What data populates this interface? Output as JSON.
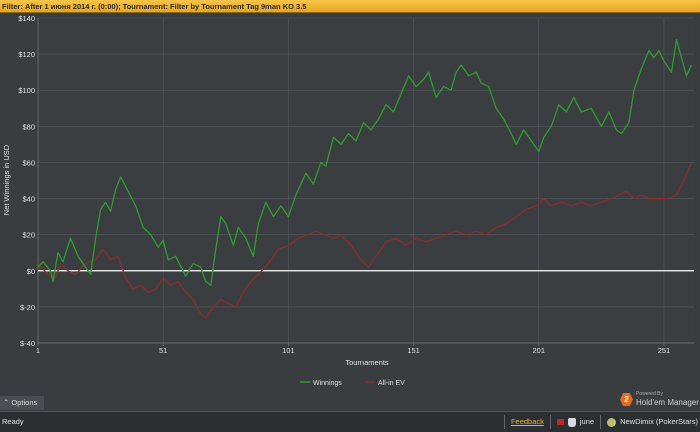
{
  "filter": {
    "prefix": "Filter:",
    "text": "After 1 июня 2014 г. (0:00);  Tournament: Filter by Tournament Tag  9man KO 3.5"
  },
  "options_label": "Options",
  "brand": {
    "powered": "Powered By",
    "name": "Hold'em Manager"
  },
  "status": {
    "ready": "Ready",
    "feedback": "Feedback",
    "tag": "june",
    "user": "NewDimix (PokerStars)"
  },
  "colors": {
    "winnings": "#2e9c2e",
    "allin_ev": "#8b2c2c",
    "zero_line": "#ffffff",
    "grid": "#55585c",
    "plot_bg": "#3b3e41"
  },
  "chart_data": {
    "type": "line",
    "xlabel": "Tournaments",
    "ylabel": "Net Winnings in USD",
    "xlim": [
      1,
      263
    ],
    "ylim": [
      -40,
      140
    ],
    "xticks": [
      1,
      51,
      101,
      151,
      201,
      251
    ],
    "yticks": [
      -40,
      -20,
      0,
      20,
      40,
      60,
      80,
      100,
      120,
      140
    ],
    "ytick_labels": [
      "$-40",
      "$-20",
      "$0",
      "$20",
      "$40",
      "$60",
      "$80",
      "$100",
      "$120",
      "$140"
    ],
    "grid": true,
    "legend_position": "bottom-center",
    "series": [
      {
        "name": "Winnings",
        "color": "#2e9c2e",
        "points": [
          [
            1,
            2
          ],
          [
            3,
            5
          ],
          [
            6,
            0
          ],
          [
            7,
            -6
          ],
          [
            9,
            10
          ],
          [
            11,
            5
          ],
          [
            14,
            18
          ],
          [
            17,
            8
          ],
          [
            20,
            2
          ],
          [
            22,
            -2
          ],
          [
            24,
            18
          ],
          [
            26,
            34
          ],
          [
            28,
            38
          ],
          [
            30,
            33
          ],
          [
            32,
            45
          ],
          [
            34,
            52
          ],
          [
            37,
            44
          ],
          [
            40,
            36
          ],
          [
            43,
            24
          ],
          [
            46,
            20
          ],
          [
            49,
            13
          ],
          [
            51,
            17
          ],
          [
            53,
            6
          ],
          [
            56,
            8
          ],
          [
            60,
            -3
          ],
          [
            63,
            4
          ],
          [
            66,
            2
          ],
          [
            68,
            -6
          ],
          [
            70,
            -8
          ],
          [
            72,
            12
          ],
          [
            74,
            30
          ],
          [
            76,
            26
          ],
          [
            79,
            14
          ],
          [
            81,
            24
          ],
          [
            84,
            18
          ],
          [
            87,
            8
          ],
          [
            89,
            26
          ],
          [
            92,
            38
          ],
          [
            95,
            30
          ],
          [
            98,
            36
          ],
          [
            101,
            30
          ],
          [
            104,
            42
          ],
          [
            108,
            54
          ],
          [
            111,
            48
          ],
          [
            114,
            60
          ],
          [
            116,
            58
          ],
          [
            119,
            74
          ],
          [
            122,
            70
          ],
          [
            125,
            76
          ],
          [
            128,
            72
          ],
          [
            131,
            82
          ],
          [
            134,
            78
          ],
          [
            137,
            84
          ],
          [
            140,
            92
          ],
          [
            143,
            88
          ],
          [
            146,
            98
          ],
          [
            149,
            108
          ],
          [
            152,
            102
          ],
          [
            155,
            106
          ],
          [
            157,
            110
          ],
          [
            160,
            96
          ],
          [
            163,
            102
          ],
          [
            166,
            100
          ],
          [
            168,
            110
          ],
          [
            170,
            114
          ],
          [
            173,
            108
          ],
          [
            176,
            110
          ],
          [
            178,
            104
          ],
          [
            181,
            102
          ],
          [
            184,
            90
          ],
          [
            187,
            84
          ],
          [
            190,
            76
          ],
          [
            192,
            70
          ],
          [
            195,
            78
          ],
          [
            198,
            72
          ],
          [
            201,
            66
          ],
          [
            203,
            74
          ],
          [
            206,
            80
          ],
          [
            209,
            92
          ],
          [
            212,
            88
          ],
          [
            215,
            96
          ],
          [
            218,
            88
          ],
          [
            222,
            90
          ],
          [
            226,
            80
          ],
          [
            229,
            88
          ],
          [
            232,
            78
          ],
          [
            234,
            76
          ],
          [
            237,
            82
          ],
          [
            239,
            100
          ],
          [
            242,
            112
          ],
          [
            245,
            122
          ],
          [
            247,
            118
          ],
          [
            249,
            122
          ],
          [
            251,
            116
          ],
          [
            254,
            110
          ],
          [
            256,
            128
          ],
          [
            258,
            118
          ],
          [
            260,
            108
          ],
          [
            262,
            114
          ]
        ]
      },
      {
        "name": "All-in EV",
        "color": "#8b2c2c",
        "points": [
          [
            1,
            4
          ],
          [
            5,
            -2
          ],
          [
            8,
            -4
          ],
          [
            10,
            4
          ],
          [
            13,
            0
          ],
          [
            16,
            -2
          ],
          [
            20,
            4
          ],
          [
            24,
            6
          ],
          [
            27,
            12
          ],
          [
            30,
            6
          ],
          [
            33,
            8
          ],
          [
            36,
            -4
          ],
          [
            39,
            -10
          ],
          [
            42,
            -8
          ],
          [
            45,
            -12
          ],
          [
            48,
            -10
          ],
          [
            51,
            -4
          ],
          [
            54,
            -8
          ],
          [
            57,
            -6
          ],
          [
            60,
            -12
          ],
          [
            63,
            -16
          ],
          [
            66,
            -24
          ],
          [
            68,
            -26
          ],
          [
            71,
            -20
          ],
          [
            74,
            -16
          ],
          [
            77,
            -18
          ],
          [
            80,
            -20
          ],
          [
            83,
            -12
          ],
          [
            86,
            -6
          ],
          [
            89,
            -2
          ],
          [
            93,
            4
          ],
          [
            97,
            12
          ],
          [
            101,
            14
          ],
          [
            105,
            18
          ],
          [
            109,
            20
          ],
          [
            112,
            22
          ],
          [
            115,
            20
          ],
          [
            119,
            18
          ],
          [
            122,
            20
          ],
          [
            126,
            14
          ],
          [
            130,
            6
          ],
          [
            133,
            2
          ],
          [
            136,
            8
          ],
          [
            140,
            16
          ],
          [
            144,
            18
          ],
          [
            148,
            14
          ],
          [
            152,
            18
          ],
          [
            156,
            16
          ],
          [
            160,
            18
          ],
          [
            164,
            20
          ],
          [
            168,
            22
          ],
          [
            172,
            20
          ],
          [
            176,
            22
          ],
          [
            180,
            20
          ],
          [
            184,
            24
          ],
          [
            188,
            26
          ],
          [
            192,
            30
          ],
          [
            196,
            34
          ],
          [
            200,
            36
          ],
          [
            203,
            40
          ],
          [
            206,
            36
          ],
          [
            210,
            38
          ],
          [
            214,
            36
          ],
          [
            218,
            38
          ],
          [
            222,
            36
          ],
          [
            226,
            38
          ],
          [
            230,
            40
          ],
          [
            233,
            42
          ],
          [
            236,
            44
          ],
          [
            239,
            40
          ],
          [
            242,
            42
          ],
          [
            245,
            40
          ],
          [
            248,
            40
          ],
          [
            252,
            40
          ],
          [
            256,
            42
          ],
          [
            259,
            50
          ],
          [
            262,
            60
          ]
        ]
      }
    ]
  }
}
